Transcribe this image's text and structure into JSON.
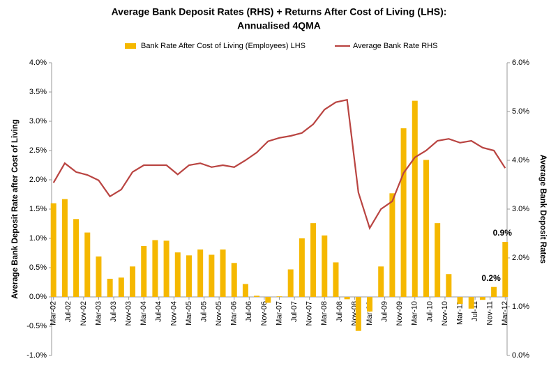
{
  "chart_data": {
    "type": "bar",
    "title": "Average Bank Deposit Rates (RHS) + Returns After Cost of Living (LHS):",
    "subtitle": "Annualised  4QMA",
    "y_label": "Average Bank Deposit Rate after Cost of Living",
    "y2_label": "Average Bank Deposit Rates",
    "legend": "top",
    "categories": [
      "Mar-02",
      null,
      null,
      null,
      "Jul-02",
      null,
      null,
      null,
      "Nov-02",
      null,
      null,
      null,
      "Mar-03",
      null,
      null,
      null,
      "Jul-03",
      null,
      null,
      null,
      "Nov-03",
      null,
      null,
      null,
      "Mar-04",
      null,
      null,
      null,
      "Jul-04",
      null,
      null,
      null,
      "Nov-04",
      null,
      null,
      null,
      "Mar-05",
      null,
      null,
      null,
      "Jul-05",
      null,
      null,
      null,
      "Nov-05",
      null,
      null,
      null,
      "Mar-06",
      null,
      null,
      null,
      "Jul-06",
      null,
      null,
      null,
      "Nov-06",
      null,
      null,
      null,
      "Mar-07",
      null,
      null,
      null,
      "Jul-07",
      null,
      null,
      null,
      "Nov-07",
      null,
      null,
      null,
      "Mar-08",
      null,
      null,
      null,
      "Jul-08",
      null,
      null,
      null,
      "Nov-08",
      null,
      null,
      null,
      "Mar-09",
      null,
      null,
      null,
      "Jul-09",
      null,
      null,
      null,
      "Nov-09",
      null,
      null,
      null,
      "Mar-10",
      null,
      null,
      null,
      "Jul-10",
      null,
      null,
      null,
      "Nov-10",
      null,
      null,
      null,
      "Mar-11",
      null,
      null,
      null,
      "Jul-11",
      null,
      null,
      null,
      "Nov-11",
      null,
      null,
      null,
      "Mar-12"
    ],
    "series": [
      {
        "name": "Bank Rate After Cost of Living (Employees) LHS",
        "type": "bar",
        "color": "#f5b800",
        "values": [
          1.6,
          null,
          null,
          1.67,
          null,
          null,
          1.33,
          null,
          null,
          1.1,
          null,
          null,
          0.69,
          null,
          null,
          0.31,
          null,
          null,
          0.33,
          null,
          null,
          0.52,
          null,
          null,
          0.87,
          null,
          null,
          0.97,
          null,
          null,
          0.96,
          null,
          null,
          0.76,
          null,
          null,
          0.71,
          null,
          null,
          0.81,
          null,
          null,
          0.72,
          null,
          null,
          0.81,
          null,
          null,
          0.58,
          null,
          null,
          0.22,
          null,
          null,
          0.02,
          null,
          null,
          -0.1,
          null,
          null,
          0.01,
          null,
          null,
          0.47,
          null,
          null,
          1.0,
          null,
          null,
          1.26,
          null,
          null,
          1.05,
          null,
          null,
          0.59,
          null,
          null,
          -0.04,
          null,
          null,
          -0.58,
          null,
          null,
          -0.25,
          null,
          null,
          0.52,
          null,
          null,
          1.77,
          null,
          null,
          2.88,
          null,
          null,
          3.35,
          null,
          null,
          2.34,
          null,
          null,
          1.26,
          null,
          null,
          0.39,
          null,
          null,
          -0.12,
          null,
          null,
          -0.2,
          null,
          null,
          -0.05,
          null,
          null,
          0.17,
          null,
          null,
          0.94
        ],
        "value_labels": [
          null,
          null,
          null,
          null,
          null,
          null,
          null,
          null,
          null,
          null,
          null,
          null,
          null,
          null,
          null,
          null,
          null,
          null,
          null,
          null,
          null,
          null,
          null,
          null,
          null,
          null,
          null,
          null,
          null,
          null,
          null,
          null,
          null,
          null,
          null,
          null,
          null,
          null,
          null,
          null,
          null,
          null,
          null,
          null,
          null,
          null,
          null,
          null,
          null,
          null,
          null,
          null,
          null,
          null,
          null,
          null,
          null,
          null,
          null,
          null,
          null,
          null,
          null,
          null,
          null,
          null,
          null,
          null,
          null,
          null,
          null,
          null,
          null,
          null,
          null,
          null,
          null,
          null,
          null,
          null,
          null,
          null,
          null,
          null,
          null,
          null,
          null,
          null,
          null,
          null,
          null,
          null,
          null,
          null,
          null,
          null,
          null,
          null,
          null,
          null,
          null,
          null,
          null,
          null,
          null,
          null,
          null,
          null,
          null,
          null,
          null,
          null,
          null,
          null,
          null,
          null,
          null,
          "0.2%",
          null,
          null,
          "0.9%"
        ]
      },
      {
        "name": "Average Bank Rate RHS",
        "type": "line",
        "axis": "y2",
        "color": "#b94441",
        "values": [
          3.54,
          null,
          null,
          3.94,
          null,
          null,
          3.76,
          null,
          null,
          3.7,
          null,
          null,
          3.59,
          null,
          null,
          3.26,
          null,
          null,
          3.4,
          null,
          null,
          3.76,
          null,
          null,
          3.9,
          null,
          null,
          3.9,
          null,
          null,
          3.9,
          null,
          null,
          3.71,
          null,
          null,
          3.9,
          null,
          null,
          3.94,
          null,
          null,
          3.86,
          null,
          null,
          3.9,
          null,
          null,
          3.86,
          null,
          null,
          4.0,
          null,
          null,
          4.16,
          null,
          null,
          4.39,
          null,
          null,
          4.46,
          null,
          null,
          4.5,
          null,
          null,
          4.56,
          null,
          null,
          4.74,
          null,
          null,
          5.04,
          null,
          null,
          5.19,
          null,
          null,
          5.24,
          null,
          null,
          3.34,
          null,
          null,
          2.61,
          null,
          null,
          3.0,
          null,
          null,
          3.16,
          null,
          null,
          3.74,
          null,
          null,
          4.06,
          null,
          null,
          4.2,
          null,
          null,
          4.4,
          null,
          null,
          4.44,
          null,
          null,
          4.36,
          null,
          null,
          4.4,
          null,
          null,
          4.26,
          null,
          null,
          4.2,
          null,
          null,
          3.84
        ]
      }
    ],
    "ylim": [
      -1,
      4
    ],
    "yticks": [
      {
        "value": -1,
        "label": "-1.0%"
      },
      {
        "value": -0.5,
        "label": "-0.5%"
      },
      {
        "value": 0,
        "label": "0.0%"
      },
      {
        "value": 0.5,
        "label": "0.5%"
      },
      {
        "value": 1,
        "label": "1.0%"
      },
      {
        "value": 1.5,
        "label": "1.5%"
      },
      {
        "value": 2,
        "label": "2.0%"
      },
      {
        "value": 2.5,
        "label": "2.5%"
      },
      {
        "value": 3,
        "label": "3.0%"
      },
      {
        "value": 3.5,
        "label": "3.5%"
      },
      {
        "value": 4,
        "label": "4.0%"
      }
    ],
    "y2lim": [
      0,
      6
    ],
    "y2ticks": [
      {
        "value": 0,
        "label": "0.0%"
      },
      {
        "value": 1,
        "label": "1.0%"
      },
      {
        "value": 2,
        "label": "2.0%"
      },
      {
        "value": 3,
        "label": "3.0%"
      },
      {
        "value": 4,
        "label": "4.0%"
      },
      {
        "value": 5,
        "label": "5.0%"
      },
      {
        "value": 6,
        "label": "6.0%"
      }
    ],
    "grid": false
  }
}
